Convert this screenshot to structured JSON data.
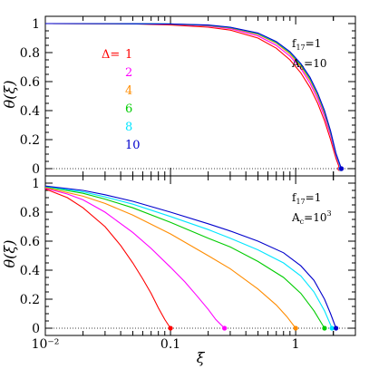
{
  "chart_data": [
    {
      "type": "line",
      "panel": "top",
      "xlabel": "ξ",
      "ylabel": "θ(ξ)",
      "xscale": "log",
      "xlim": [
        0.01,
        3.0
      ],
      "ylim": [
        -0.05,
        1.05
      ],
      "yticks": [
        "0",
        "0.2",
        "0.4",
        "0.6",
        "0.8",
        "1"
      ],
      "annotation": {
        "line1": "f17=1",
        "line2": "Ac=10",
        "f_base": "f",
        "f_sub": "17",
        "f_rest": "=1",
        "A_base": "A",
        "A_sub": "c",
        "A_rest": "=10"
      },
      "legend_prefix": "Δ=",
      "series": [
        {
          "name": "1",
          "color": "#ff0000",
          "x": [
            0.01,
            0.05,
            0.1,
            0.2,
            0.3,
            0.5,
            0.7,
            0.9,
            1.1,
            1.3,
            1.5,
            1.7,
            1.9,
            2.1,
            2.25
          ],
          "y": [
            1.0,
            0.998,
            0.99,
            0.975,
            0.955,
            0.9,
            0.83,
            0.75,
            0.66,
            0.56,
            0.45,
            0.33,
            0.2,
            0.07,
            0.0
          ]
        },
        {
          "name": "2",
          "color": "#ff00ff",
          "x": [
            0.01,
            0.05,
            0.1,
            0.2,
            0.3,
            0.5,
            0.7,
            0.9,
            1.1,
            1.3,
            1.5,
            1.7,
            1.9,
            2.1,
            2.28
          ],
          "y": [
            1.0,
            0.999,
            0.995,
            0.983,
            0.965,
            0.915,
            0.85,
            0.775,
            0.69,
            0.59,
            0.48,
            0.36,
            0.23,
            0.09,
            0.0
          ]
        },
        {
          "name": "4",
          "color": "#ff8c00",
          "x": [
            0.01,
            0.05,
            0.1,
            0.2,
            0.3,
            0.5,
            0.7,
            0.9,
            1.1,
            1.3,
            1.5,
            1.7,
            1.9,
            2.1,
            2.3
          ],
          "y": [
            1.0,
            0.999,
            0.996,
            0.986,
            0.97,
            0.925,
            0.865,
            0.79,
            0.705,
            0.61,
            0.5,
            0.38,
            0.245,
            0.1,
            0.0
          ]
        },
        {
          "name": "6",
          "color": "#00cc00",
          "x": [
            0.01,
            0.05,
            0.1,
            0.2,
            0.3,
            0.5,
            0.7,
            0.9,
            1.1,
            1.3,
            1.5,
            1.7,
            1.9,
            2.1,
            2.3
          ],
          "y": [
            1.0,
            0.999,
            0.997,
            0.988,
            0.972,
            0.93,
            0.87,
            0.8,
            0.715,
            0.62,
            0.51,
            0.39,
            0.25,
            0.1,
            0.0
          ]
        },
        {
          "name": "8",
          "color": "#00e5ff",
          "x": [
            0.01,
            0.05,
            0.1,
            0.2,
            0.3,
            0.5,
            0.7,
            0.9,
            1.1,
            1.3,
            1.5,
            1.7,
            1.9,
            2.1,
            2.3
          ],
          "y": [
            1.0,
            0.999,
            0.997,
            0.989,
            0.974,
            0.932,
            0.873,
            0.803,
            0.72,
            0.625,
            0.515,
            0.395,
            0.255,
            0.1,
            0.0
          ]
        },
        {
          "name": "10",
          "color": "#0000cc",
          "x": [
            0.01,
            0.05,
            0.1,
            0.2,
            0.3,
            0.5,
            0.7,
            0.9,
            1.1,
            1.3,
            1.5,
            1.7,
            1.9,
            2.1,
            2.32
          ],
          "y": [
            1.0,
            0.999,
            0.997,
            0.99,
            0.975,
            0.935,
            0.876,
            0.806,
            0.724,
            0.63,
            0.52,
            0.4,
            0.26,
            0.105,
            0.0
          ]
        }
      ]
    },
    {
      "type": "line",
      "panel": "bottom",
      "xlabel": "ξ",
      "ylabel": "θ(ξ)",
      "xscale": "log",
      "xlim": [
        0.01,
        3.0
      ],
      "ylim": [
        -0.05,
        1.05
      ],
      "yticks": [
        "0",
        "0.2",
        "0.4",
        "0.6",
        "0.8",
        "1"
      ],
      "xticks": [
        "10⁻²",
        "0.1",
        "1"
      ],
      "xtick_values": [
        0.01,
        0.1,
        1
      ],
      "annotation": {
        "f_base": "f",
        "f_sub": "17",
        "f_rest": "=1",
        "A_base": "A",
        "A_sub": "c",
        "A_rest": "=10",
        "A_sup": "3"
      },
      "series": [
        {
          "name": "1",
          "color": "#ff0000",
          "x": [
            0.01,
            0.015,
            0.02,
            0.03,
            0.04,
            0.05,
            0.06,
            0.07,
            0.08,
            0.09,
            0.1
          ],
          "y": [
            0.96,
            0.9,
            0.83,
            0.7,
            0.57,
            0.45,
            0.34,
            0.24,
            0.14,
            0.06,
            0.0
          ]
        },
        {
          "name": "2",
          "color": "#ff00ff",
          "x": [
            0.01,
            0.015,
            0.02,
            0.03,
            0.05,
            0.07,
            0.1,
            0.13,
            0.16,
            0.2,
            0.23,
            0.27
          ],
          "y": [
            0.965,
            0.925,
            0.885,
            0.8,
            0.66,
            0.55,
            0.42,
            0.32,
            0.23,
            0.13,
            0.06,
            0.0
          ]
        },
        {
          "name": "4",
          "color": "#ff8c00",
          "x": [
            0.01,
            0.02,
            0.03,
            0.05,
            0.1,
            0.2,
            0.3,
            0.5,
            0.7,
            0.85,
            1.0
          ],
          "y": [
            0.97,
            0.91,
            0.86,
            0.78,
            0.65,
            0.5,
            0.41,
            0.27,
            0.16,
            0.08,
            0.0
          ]
        },
        {
          "name": "6",
          "color": "#00cc00",
          "x": [
            0.01,
            0.02,
            0.03,
            0.05,
            0.1,
            0.2,
            0.3,
            0.5,
            0.8,
            1.1,
            1.4,
            1.7
          ],
          "y": [
            0.975,
            0.93,
            0.89,
            0.83,
            0.73,
            0.62,
            0.56,
            0.46,
            0.35,
            0.24,
            0.12,
            0.0
          ]
        },
        {
          "name": "8",
          "color": "#00e5ff",
          "x": [
            0.01,
            0.02,
            0.03,
            0.05,
            0.1,
            0.2,
            0.3,
            0.5,
            0.8,
            1.1,
            1.4,
            1.7,
            1.95
          ],
          "y": [
            0.978,
            0.94,
            0.905,
            0.855,
            0.77,
            0.68,
            0.62,
            0.54,
            0.45,
            0.36,
            0.25,
            0.12,
            0.0
          ]
        },
        {
          "name": "10",
          "color": "#0000cc",
          "x": [
            0.01,
            0.02,
            0.03,
            0.05,
            0.1,
            0.2,
            0.3,
            0.5,
            0.8,
            1.1,
            1.4,
            1.7,
            1.9,
            2.1
          ],
          "y": [
            0.98,
            0.95,
            0.92,
            0.875,
            0.8,
            0.72,
            0.67,
            0.6,
            0.52,
            0.43,
            0.33,
            0.2,
            0.1,
            0.0
          ]
        }
      ]
    }
  ]
}
